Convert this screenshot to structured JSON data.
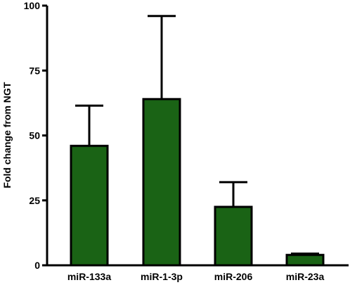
{
  "chart_data": {
    "type": "bar",
    "title": "",
    "xlabel": "",
    "ylabel": "Fold change from NGT",
    "ylim": [
      0,
      100
    ],
    "yticks": [
      0,
      25,
      50,
      75,
      100
    ],
    "categories": [
      "miR-133a",
      "miR-1-3p",
      "miR-206",
      "miR-23a"
    ],
    "values": [
      46,
      64,
      22.5,
      4
    ],
    "error_upper": [
      61.5,
      96,
      32,
      4.5
    ],
    "grid": false,
    "legend": "none",
    "bar_color": "#1a6315",
    "edge_color": "#000000"
  }
}
